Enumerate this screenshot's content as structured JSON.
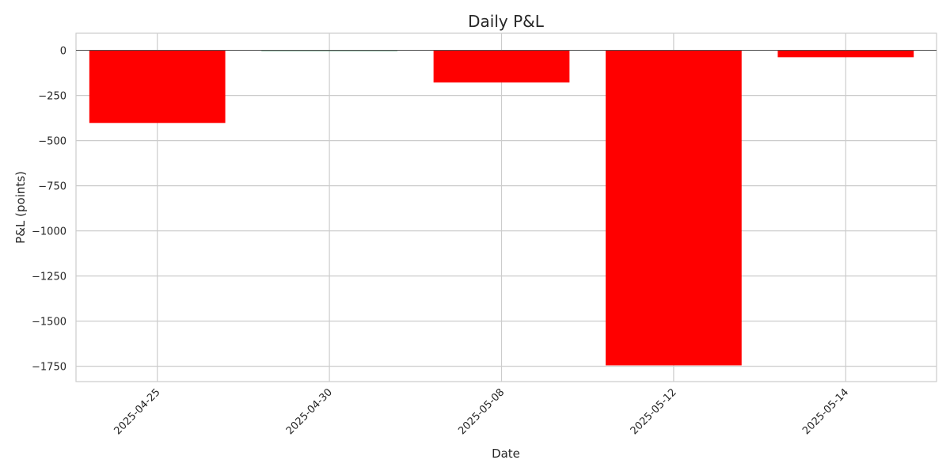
{
  "chart_data": {
    "type": "bar",
    "title": "Daily P&L",
    "xlabel": "Date",
    "ylabel": "P&L (points)",
    "categories": [
      "2025-04-25",
      "2025-04-30",
      "2025-05-08",
      "2025-05-12",
      "2025-05-14"
    ],
    "values": [
      -402,
      1,
      -178,
      -1745,
      -38
    ],
    "ylim": [
      -1835,
      95
    ],
    "yticks": [
      0,
      -250,
      -500,
      -750,
      -1000,
      -1250,
      -1500,
      -1750
    ],
    "ytick_labels": [
      "0",
      "−250",
      "−500",
      "−750",
      "−1000",
      "−1250",
      "−1500",
      "−1750"
    ],
    "grid": true,
    "colors": {
      "negative": "#ff0000",
      "positive": "#2e8b57",
      "grid": "#cccccc",
      "zero_line": "#262626"
    }
  }
}
